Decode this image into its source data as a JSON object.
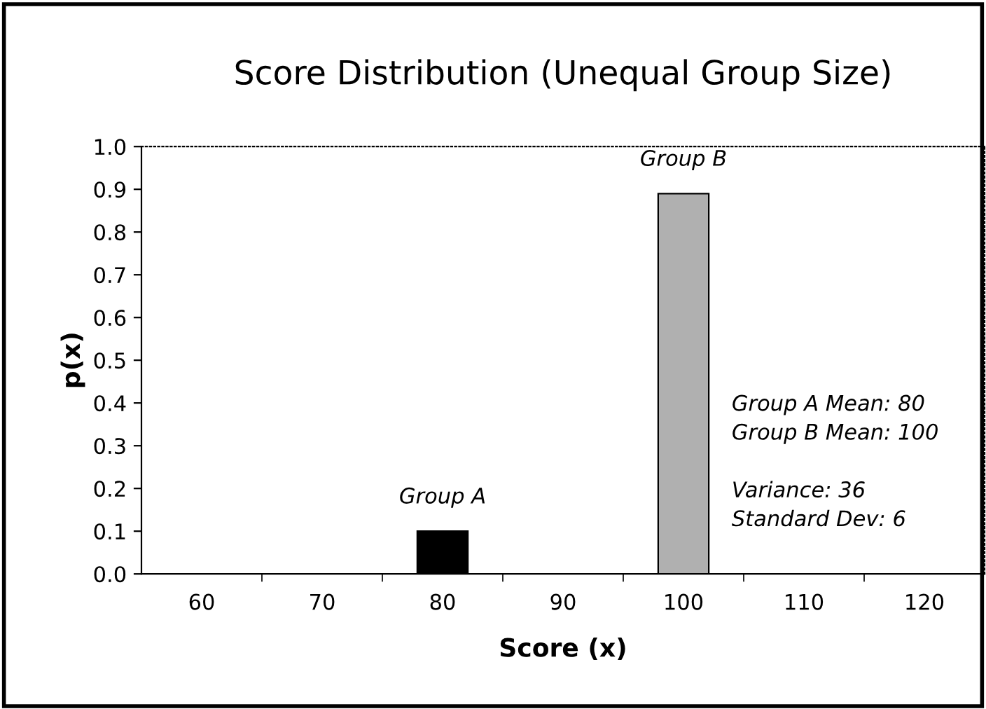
{
  "chart_data": {
    "type": "bar",
    "title": "Score Distribution (Unequal Group Size)",
    "xlabel": "Score (x)",
    "ylabel": "p(x)",
    "categories": [
      "60",
      "70",
      "80",
      "90",
      "100",
      "110",
      "120"
    ],
    "values": [
      null,
      null,
      0.1,
      null,
      0.89,
      null,
      null
    ],
    "colors": [
      "#000000",
      "#000000",
      "#000000",
      "#000000",
      "#b0b0b0",
      "#000000",
      "#000000"
    ],
    "ylim": [
      0,
      1
    ],
    "yticks": [
      {
        "value": 0,
        "label": "0.0"
      },
      {
        "value": 0.1,
        "label": "0.1"
      },
      {
        "value": 0.2,
        "label": "0.2"
      },
      {
        "value": 0.3,
        "label": "0.3"
      },
      {
        "value": 0.4,
        "label": "0.4"
      },
      {
        "value": 0.5,
        "label": "0.5"
      },
      {
        "value": 0.6,
        "label": "0.6"
      },
      {
        "value": 0.7,
        "label": "0.7"
      },
      {
        "value": 0.8,
        "label": "0.8"
      },
      {
        "value": 0.9,
        "label": "0.9"
      },
      {
        "value": 1,
        "label": "1.0"
      }
    ],
    "annotations": [
      {
        "text": "Group A",
        "x": "80",
        "y": 0.1
      },
      {
        "text": "Group B",
        "x": "100",
        "y": 0.89
      },
      "Group A Mean: 80\nGroup B Mean: 100\n\nVariance: 36\nStandard Dev: 6"
    ],
    "grid": false,
    "legend": false
  }
}
